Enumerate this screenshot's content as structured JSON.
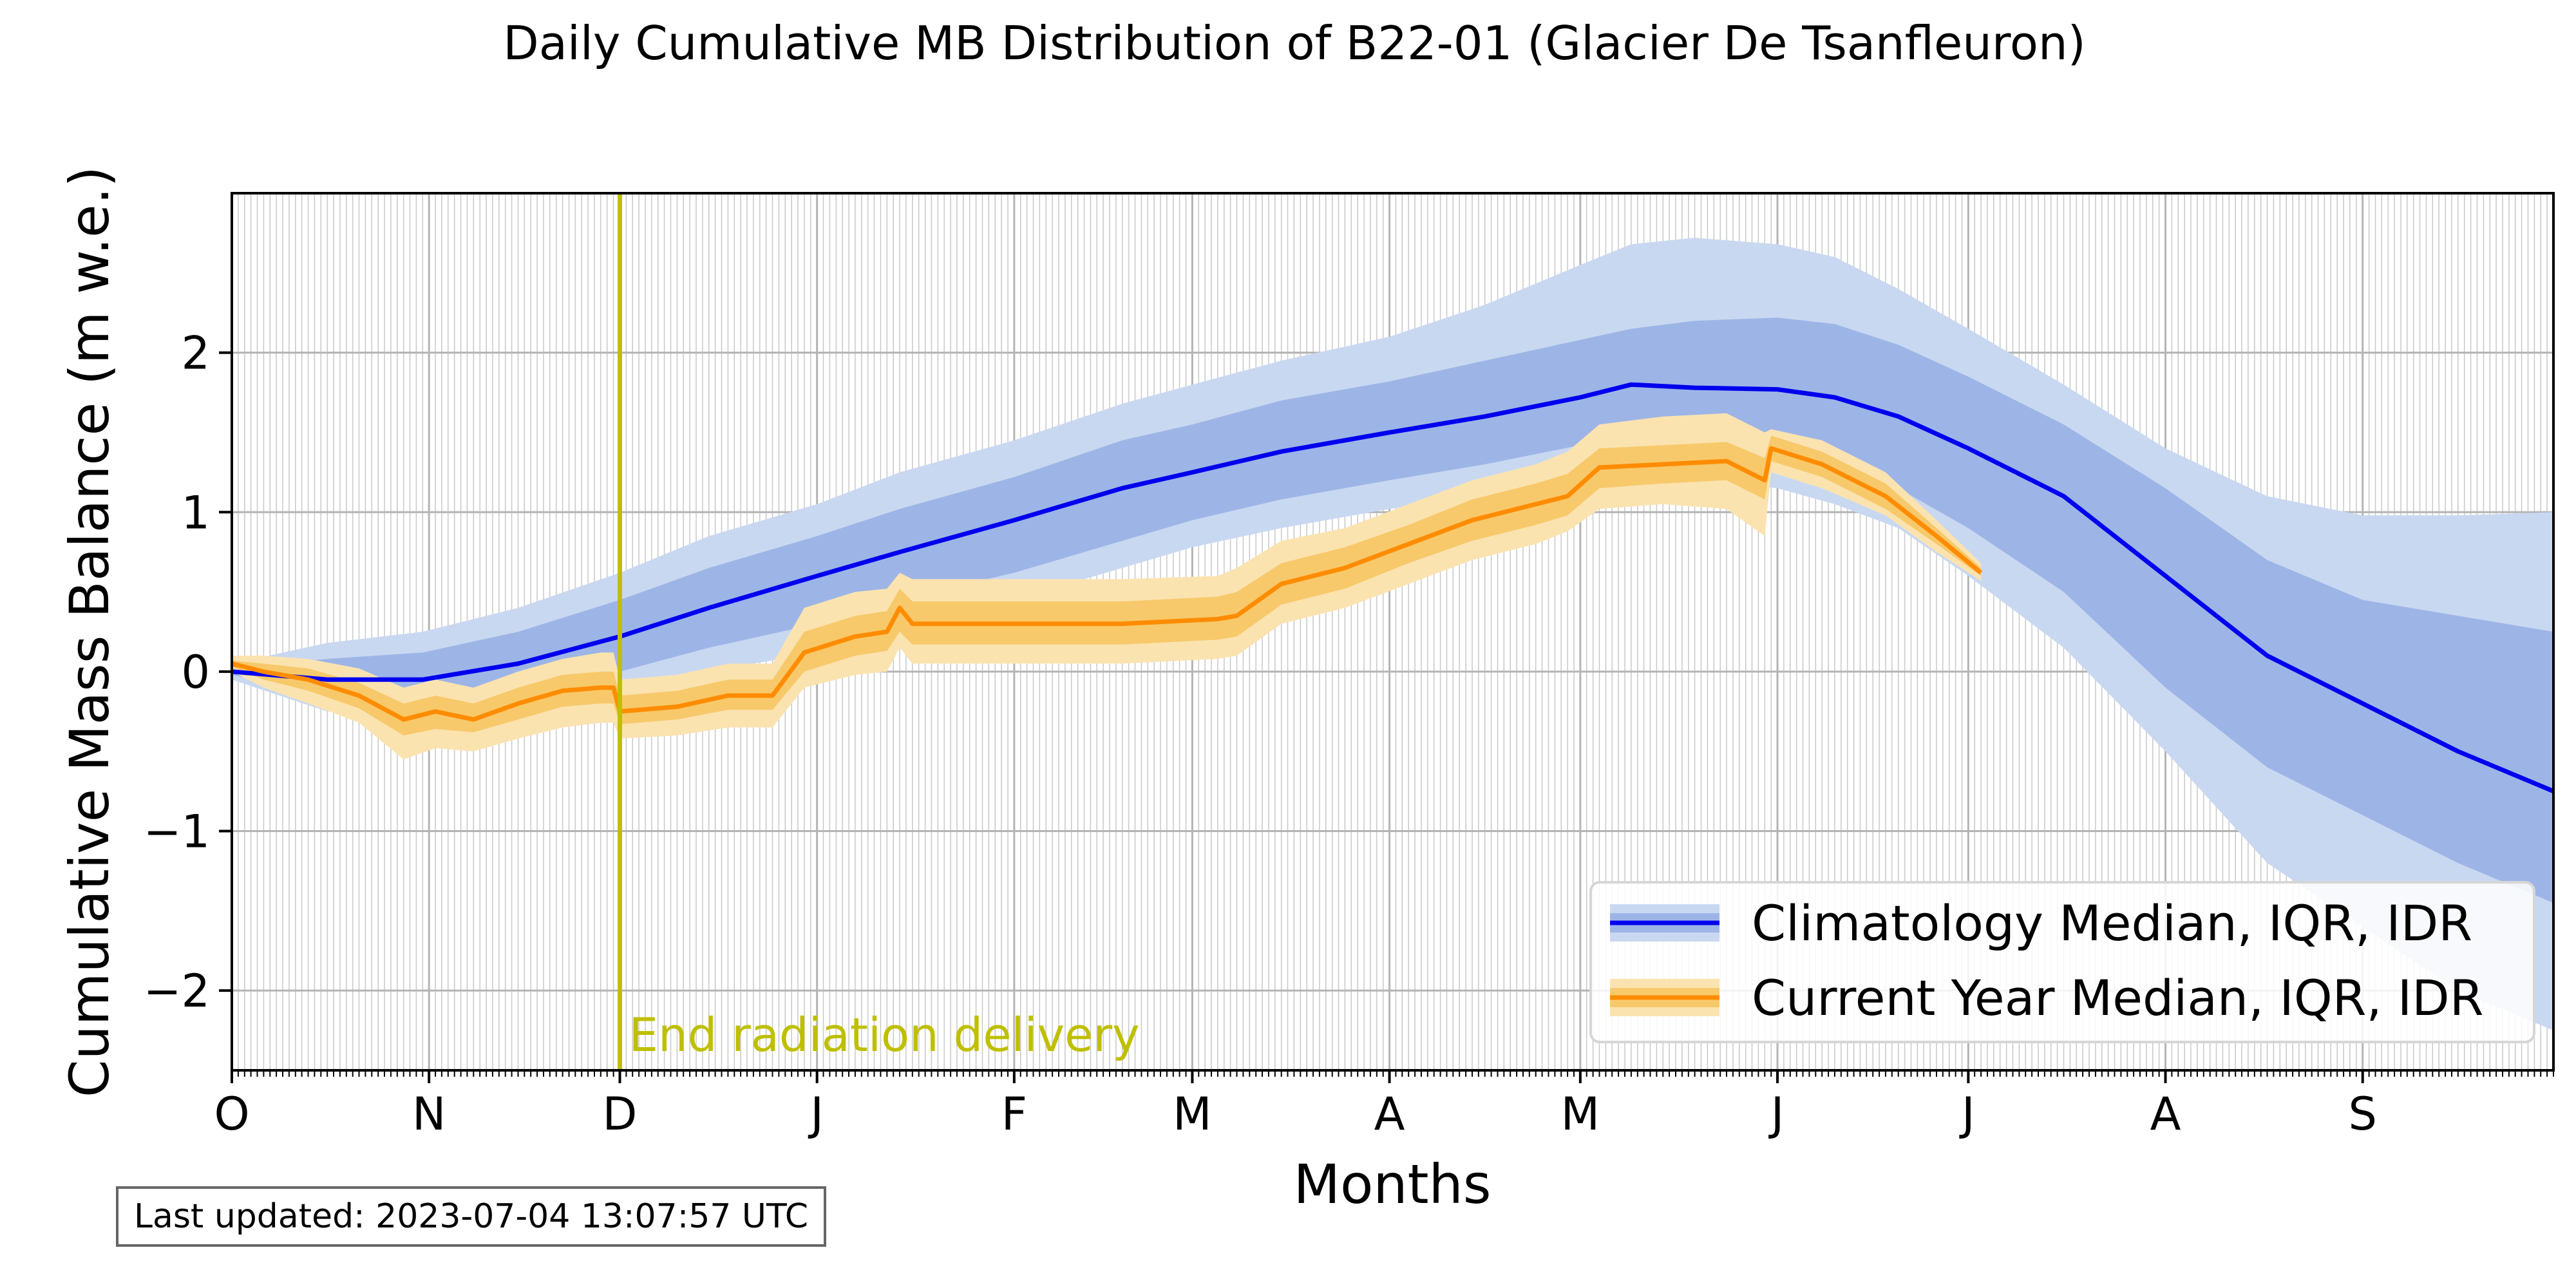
{
  "chart_data": {
    "type": "area",
    "title": "Daily Cumulative MB Distribution of B22-01 (Glacier De Tsanfleuron)",
    "xlabel": "Months",
    "ylabel": "Cumulative Mass Balance (m w.e.)",
    "x_unit": "days since 1 October",
    "xlim": [
      0,
      365
    ],
    "ylim": [
      -2.5,
      3.0
    ],
    "yticks": [
      -2,
      -1,
      0,
      1,
      2
    ],
    "month_ticks": [
      {
        "day": 0,
        "label": "O"
      },
      {
        "day": 31,
        "label": "N"
      },
      {
        "day": 61,
        "label": "D"
      },
      {
        "day": 92,
        "label": "J"
      },
      {
        "day": 123,
        "label": "F"
      },
      {
        "day": 151,
        "label": "M"
      },
      {
        "day": 182,
        "label": "A"
      },
      {
        "day": 212,
        "label": "M"
      },
      {
        "day": 243,
        "label": "J"
      },
      {
        "day": 273,
        "label": "J"
      },
      {
        "day": 304,
        "label": "A"
      },
      {
        "day": 335,
        "label": "S"
      }
    ],
    "grid": true,
    "legend_position": "lower-right",
    "annotations": [
      {
        "type": "vline",
        "x": 61,
        "text": "End radiation delivery",
        "color": "#bfbf00"
      }
    ],
    "series": [
      {
        "name": "Climatology Median, IQR, IDR",
        "line_color": "#0000ee",
        "iqr_color": "#9db5e6",
        "idr_color": "#c9d8f1",
        "x": [
          0,
          15,
          30,
          45,
          61,
          75,
          92,
          105,
          123,
          140,
          151,
          165,
          182,
          197,
          212,
          220,
          230,
          243,
          252,
          262,
          273,
          288,
          304,
          320,
          335,
          350,
          365
        ],
        "median": [
          0,
          -0.05,
          -0.05,
          0.05,
          0.22,
          0.4,
          0.6,
          0.75,
          0.95,
          1.15,
          1.25,
          1.38,
          1.5,
          1.6,
          1.72,
          1.8,
          1.78,
          1.77,
          1.72,
          1.6,
          1.4,
          1.1,
          0.6,
          0.1,
          -0.2,
          -0.5,
          -0.75
        ],
        "iqr_low": [
          -0.02,
          -0.15,
          -0.2,
          -0.12,
          0.0,
          0.15,
          0.3,
          0.45,
          0.62,
          0.82,
          0.95,
          1.08,
          1.2,
          1.3,
          1.42,
          1.48,
          1.45,
          1.42,
          1.3,
          1.15,
          0.9,
          0.5,
          -0.1,
          -0.6,
          -0.9,
          -1.2,
          -1.45
        ],
        "iqr_high": [
          0.02,
          0.08,
          0.12,
          0.25,
          0.45,
          0.65,
          0.85,
          1.02,
          1.22,
          1.45,
          1.55,
          1.7,
          1.82,
          1.95,
          2.08,
          2.15,
          2.2,
          2.22,
          2.18,
          2.05,
          1.85,
          1.55,
          1.15,
          0.7,
          0.45,
          0.35,
          0.25
        ],
        "idr_low": [
          -0.05,
          -0.25,
          -0.3,
          -0.25,
          -0.15,
          0.0,
          0.12,
          0.28,
          0.45,
          0.65,
          0.78,
          0.9,
          1.02,
          1.1,
          1.2,
          1.22,
          1.2,
          1.15,
          1.05,
          0.9,
          0.6,
          0.15,
          -0.5,
          -1.2,
          -1.6,
          -2.0,
          -2.25
        ],
        "idr_high": [
          0.05,
          0.18,
          0.25,
          0.4,
          0.62,
          0.85,
          1.05,
          1.25,
          1.45,
          1.68,
          1.8,
          1.95,
          2.1,
          2.3,
          2.55,
          2.68,
          2.72,
          2.68,
          2.6,
          2.4,
          2.15,
          1.8,
          1.4,
          1.1,
          0.98,
          0.98,
          1.0
        ]
      },
      {
        "name": "Current Year Median, IQR, IDR",
        "line_color": "#ff8c00",
        "iqr_color": "#f7c96b",
        "idr_color": "#fbe3b0",
        "x": [
          0,
          5,
          12,
          20,
          27,
          32,
          38,
          45,
          52,
          58,
          60,
          61,
          70,
          78,
          85,
          90,
          98,
          103,
          105,
          107,
          120,
          140,
          155,
          158,
          165,
          175,
          185,
          195,
          205,
          210,
          215,
          225,
          235,
          241,
          242,
          250,
          260,
          268,
          275
        ],
        "median": [
          0.05,
          0.0,
          -0.05,
          -0.15,
          -0.3,
          -0.25,
          -0.3,
          -0.2,
          -0.12,
          -0.1,
          -0.1,
          -0.25,
          -0.22,
          -0.15,
          -0.15,
          0.12,
          0.22,
          0.25,
          0.4,
          0.3,
          0.3,
          0.3,
          0.33,
          0.35,
          0.55,
          0.65,
          0.8,
          0.95,
          1.05,
          1.1,
          1.28,
          1.3,
          1.32,
          1.2,
          1.4,
          1.3,
          1.1,
          0.85,
          0.62
        ],
        "iqr_low": [
          0.03,
          -0.05,
          -0.12,
          -0.23,
          -0.4,
          -0.36,
          -0.38,
          -0.3,
          -0.22,
          -0.2,
          -0.2,
          -0.33,
          -0.3,
          -0.24,
          -0.24,
          0.0,
          0.1,
          0.13,
          0.25,
          0.17,
          0.17,
          0.17,
          0.2,
          0.22,
          0.42,
          0.52,
          0.68,
          0.82,
          0.92,
          0.98,
          1.15,
          1.18,
          1.2,
          1.08,
          1.32,
          1.22,
          1.02,
          0.8,
          0.6
        ],
        "iqr_high": [
          0.07,
          0.05,
          0.02,
          -0.07,
          -0.2,
          -0.15,
          -0.2,
          -0.1,
          -0.02,
          0.0,
          0.0,
          -0.15,
          -0.12,
          -0.05,
          -0.05,
          0.25,
          0.35,
          0.38,
          0.52,
          0.44,
          0.44,
          0.44,
          0.47,
          0.5,
          0.68,
          0.78,
          0.92,
          1.08,
          1.18,
          1.24,
          1.4,
          1.42,
          1.44,
          1.34,
          1.48,
          1.38,
          1.18,
          0.9,
          0.65
        ],
        "idr_low": [
          0.0,
          -0.1,
          -0.2,
          -0.32,
          -0.55,
          -0.48,
          -0.5,
          -0.42,
          -0.35,
          -0.32,
          -0.32,
          -0.42,
          -0.4,
          -0.35,
          -0.35,
          -0.1,
          -0.02,
          0.0,
          0.15,
          0.05,
          0.05,
          0.05,
          0.08,
          0.1,
          0.3,
          0.4,
          0.55,
          0.7,
          0.8,
          0.88,
          1.02,
          1.05,
          1.02,
          0.85,
          1.25,
          1.15,
          0.98,
          0.75,
          0.57
        ],
        "idr_high": [
          0.1,
          0.1,
          0.08,
          0.02,
          -0.1,
          -0.05,
          -0.1,
          0.0,
          0.08,
          0.12,
          0.12,
          -0.05,
          -0.02,
          0.05,
          0.05,
          0.4,
          0.5,
          0.52,
          0.62,
          0.58,
          0.58,
          0.58,
          0.6,
          0.65,
          0.82,
          0.9,
          1.05,
          1.2,
          1.3,
          1.38,
          1.55,
          1.6,
          1.62,
          1.5,
          1.52,
          1.45,
          1.25,
          0.95,
          0.68
        ]
      }
    ]
  },
  "footer": {
    "last_updated": "Last updated: 2023-07-04 13:07:57 UTC"
  }
}
